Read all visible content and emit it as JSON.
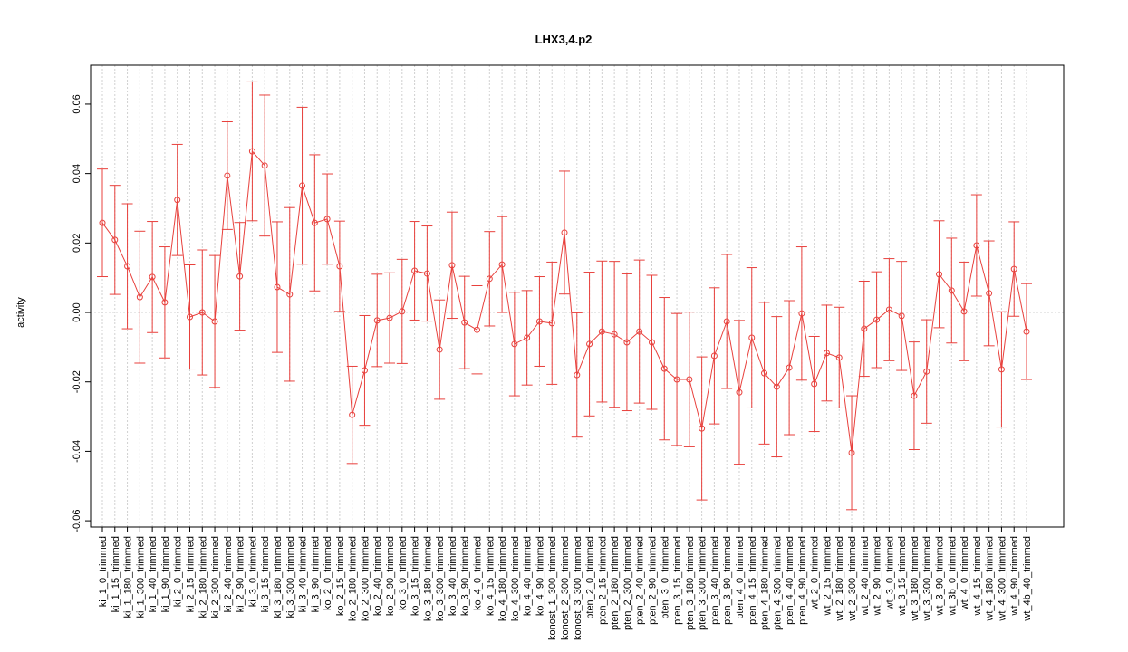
{
  "chart_data": {
    "type": "errorbar",
    "title": "LHX3,4.p2",
    "ylabel": "activity",
    "categories": [
      "ki_1_0_trimmed",
      "ki_1_15_trimmed",
      "ki_1_180_trimmed",
      "ki_1_300_trimmed",
      "ki_1_40_trimmed",
      "ki_1_90_trimmed",
      "ki_2_0_trimmed",
      "ki_2_15_trimmed",
      "ki_2_180_trimmed",
      "ki_2_300_trimmed",
      "ki_2_40_trimmed",
      "ki_2_90_trimmed",
      "ki_3_0_trimmed",
      "ki_3_15_trimmed",
      "ki_3_180_trimmed",
      "ki_3_300_trimmed",
      "ki_3_40_trimmed",
      "ki_3_90_trimmed",
      "ko_2_0_trimmed",
      "ko_2_15_trimmed",
      "ko_2_180_trimmed",
      "ko_2_300_trimmed",
      "ko_2_40_trimmed",
      "ko_2_90_trimmed",
      "ko_3_0_trimmed",
      "ko_3_15_trimmed",
      "ko_3_180_trimmed",
      "ko_3_300_trimmed",
      "ko_3_40_trimmed",
      "ko_3_90_trimmed",
      "ko_4_0_trimmed",
      "ko_4_15_trimmed",
      "ko_4_180_trimmed",
      "ko_4_300_trimmed",
      "ko_4_40_trimmed",
      "ko_4_90_trimmed",
      "konost_1_300_trimmed",
      "konost_2_300_trimmed",
      "konost_3_300_trimmed",
      "pten_2_0_trimmed",
      "pten_2_15_trimmed",
      "pten_2_180_trimmed",
      "pten_2_300_trimmed",
      "pten_2_40_trimmed",
      "pten_2_90_trimmed",
      "pten_3_0_trimmed",
      "pten_3_15_trimmed",
      "pten_3_180_trimmed",
      "pten_3_300_trimmed",
      "pten_3_40_trimmed",
      "pten_3_90_trimmed",
      "pten_4_0_trimmed",
      "pten_4_15_trimmed",
      "pten_4_180_trimmed",
      "pten_4_300_trimmed",
      "pten_4_40_trimmed",
      "pten_4_90_trimmed",
      "wt_2_0_trimmed",
      "wt_2_15_trimmed",
      "wt_2_180_trimmed",
      "wt_2_300_trimmed",
      "wt_2_40_trimmed",
      "wt_2_90_trimmed",
      "wt_3_0_trimmed",
      "wt_3_15_trimmed",
      "wt_3_180_trimmed",
      "wt_3_300_trimmed",
      "wt_3_90_trimmed",
      "wt_3b_0_trimmed",
      "wt_4_0_trimmed",
      "wt_4_15_trimmed",
      "wt_4_180_trimmed",
      "wt_4_300_trimmed",
      "wt_4_90_trimmed",
      "wt_4b_40_trimmed"
    ],
    "values": [
      0.0258,
      0.0209,
      0.0133,
      0.0044,
      0.0102,
      0.0029,
      0.0324,
      -0.0013,
      0.0,
      -0.0026,
      0.0394,
      0.0104,
      0.0464,
      0.0423,
      0.0073,
      0.0052,
      0.0365,
      0.0258,
      0.0269,
      0.0133,
      -0.0295,
      -0.0167,
      -0.0023,
      -0.0016,
      0.0003,
      0.012,
      0.0112,
      -0.0107,
      0.0136,
      -0.0029,
      -0.005,
      0.0097,
      0.0138,
      -0.0091,
      -0.0073,
      -0.0026,
      -0.0031,
      0.023,
      -0.018,
      -0.0091,
      -0.0055,
      -0.0063,
      -0.0086,
      -0.0055,
      -0.0086,
      -0.0162,
      -0.0193,
      -0.0193,
      -0.0334,
      -0.0125,
      -0.0026,
      -0.023,
      -0.0073,
      -0.0175,
      -0.0214,
      -0.0159,
      -0.0003,
      -0.0206,
      -0.0117,
      -0.013,
      -0.0404,
      -0.0047,
      -0.0021,
      0.0008,
      -0.001,
      -0.024,
      -0.017,
      0.011,
      0.0063,
      0.0003,
      0.0193,
      0.0055,
      -0.0164,
      0.0125,
      -0.0055
    ],
    "errors": [
      0.0155,
      0.0157,
      0.018,
      0.019,
      0.016,
      0.016,
      0.016,
      0.015,
      0.018,
      0.019,
      0.0155,
      0.0155,
      0.02,
      0.0203,
      0.0188,
      0.025,
      0.0226,
      0.0196,
      0.013,
      0.013,
      0.014,
      0.0158,
      0.0133,
      0.013,
      0.015,
      0.0142,
      0.0137,
      0.0143,
      0.0153,
      0.0133,
      0.0127,
      0.0136,
      0.0138,
      0.0149,
      0.0136,
      0.0129,
      0.0176,
      0.0177,
      0.0179,
      0.0207,
      0.0203,
      0.021,
      0.0197,
      0.0206,
      0.0193,
      0.0205,
      0.019,
      0.0194,
      0.0206,
      0.0196,
      0.0193,
      0.0207,
      0.0202,
      0.0204,
      0.0202,
      0.0193,
      0.0192,
      0.0137,
      0.0138,
      0.0145,
      0.0164,
      0.0137,
      0.0138,
      0.0147,
      0.0157,
      0.0155,
      0.0149,
      0.0154,
      0.0151,
      0.0142,
      0.0146,
      0.0151,
      0.0166,
      0.0136,
      0.0138
    ],
    "color": "#e8403c",
    "ylim": [
      -0.0618,
      0.0712
    ],
    "yticks": [
      -0.06,
      -0.04,
      -0.02,
      {
        "value": 0,
        "label": "0.00"
      },
      0.02,
      0.04,
      0.06
    ],
    "grid": true
  }
}
